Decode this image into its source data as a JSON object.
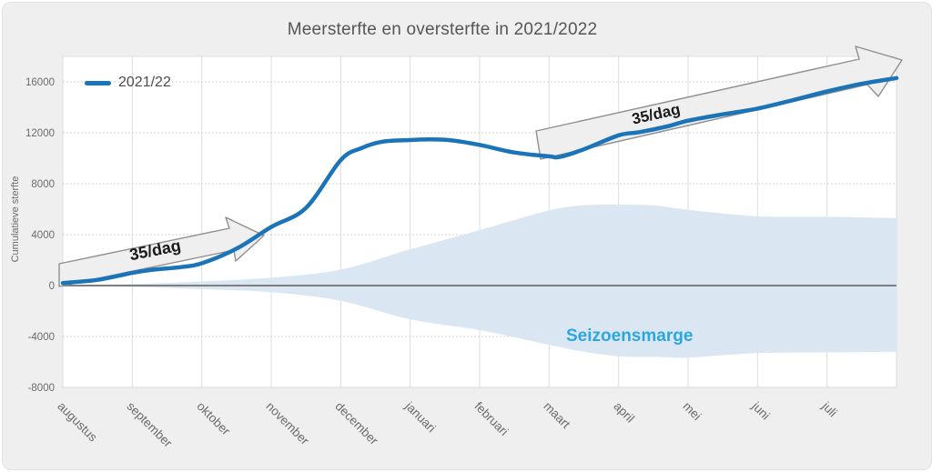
{
  "title": "Meersterfte en oversterfte in 2021/2022",
  "legend": {
    "label": "2021/22"
  },
  "y_axis": {
    "title": "Cumulatieve sterfte",
    "tick_labels": [
      "16000",
      "12000",
      "8000",
      "4000",
      "0",
      "-4000",
      "-8000"
    ]
  },
  "x_axis": {
    "categories": [
      "augustus",
      "september",
      "oktober",
      "november",
      "december",
      "januari",
      "februari",
      "maart",
      "april",
      "mei",
      "juni",
      "juli"
    ]
  },
  "annotations": {
    "arrow_label_1": "35/dag",
    "arrow_label_2": "35/dag",
    "band_label": "Seizoensmarge"
  },
  "colors": {
    "series_line": "#1B73B8",
    "band_fill": "#DAE7F3",
    "band_label": "#2BA6E0",
    "zero_line": "#7F7F7F",
    "gridline_vertical": "#DCDCDC",
    "gridline_horizontal": "#D4D4D4",
    "arrow_fill": "#EFEFEF",
    "arrow_stroke": "#8C8C8C",
    "figure_background": "#EFEFEF",
    "plot_background": "#FFFFFF",
    "title_text": "#565656",
    "axis_text": "#6B6B6B"
  },
  "chart_data": {
    "type": "line",
    "title": "Meersterfte en oversterfte in 2021/2022",
    "xlabel": "",
    "ylabel": "Cumulatieve sterfte",
    "ylim": [
      -8000,
      18000
    ],
    "y_ticks": [
      16000,
      12000,
      8000,
      4000,
      0,
      -4000,
      -8000
    ],
    "x_categories": [
      "augustus",
      "september",
      "oktober",
      "november",
      "december",
      "januari",
      "februari",
      "maart",
      "april",
      "mei",
      "juni",
      "juli"
    ],
    "grid": true,
    "legend_position": "top-left",
    "series": [
      {
        "name": "2021/22",
        "x": [
          0,
          0.5,
          1,
          1.3,
          1.7,
          2,
          2.5,
          3,
          3.5,
          4,
          4.3,
          4.6,
          5,
          5.3,
          5.6,
          6,
          6.5,
          7,
          7.15,
          7.5,
          8,
          8.3,
          8.7,
          9,
          9.5,
          10,
          10.5,
          11,
          11.5,
          12
        ],
        "values": [
          200,
          450,
          1000,
          1250,
          1450,
          1750,
          2900,
          4600,
          6100,
          9850,
          10800,
          11300,
          11430,
          11480,
          11400,
          11050,
          10450,
          10150,
          10100,
          10700,
          11800,
          12050,
          12500,
          12950,
          13450,
          13900,
          14550,
          15250,
          15850,
          16300
        ]
      }
    ],
    "band": {
      "name": "Seizoensmarge",
      "x": [
        0,
        1,
        2,
        3,
        4,
        5,
        6,
        7,
        7.5,
        8,
        8.5,
        9,
        10,
        11,
        12
      ],
      "upper": [
        50,
        130,
        320,
        620,
        1250,
        2850,
        4350,
        5900,
        6300,
        6350,
        6300,
        5950,
        5450,
        5400,
        5300
      ],
      "lower": [
        -40,
        -110,
        -280,
        -520,
        -1200,
        -2650,
        -3500,
        -4650,
        -5200,
        -5550,
        -5600,
        -5650,
        -5300,
        -5250,
        -5200
      ]
    },
    "annotations": [
      {
        "type": "arrow",
        "label": "35/dag",
        "from_month": 0,
        "to_month": 2.9,
        "note": "slope indicator aug-okt"
      },
      {
        "type": "arrow",
        "label": "35/dag",
        "from_month": 6.8,
        "to_month": 12,
        "note": "slope indicator mrt-jul"
      }
    ]
  }
}
